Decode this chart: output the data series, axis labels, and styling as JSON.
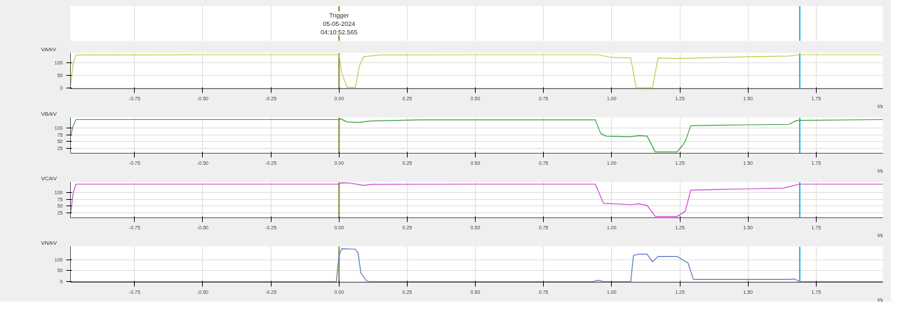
{
  "chart_data": [
    {
      "type": "line",
      "ylabel": "VA/kV",
      "xlabel": "t/s",
      "grid": true,
      "xlim": [
        -0.985,
        1.995
      ],
      "xticks": [
        {
          "value": -0.75,
          "label": "-0.75"
        },
        {
          "value": -0.5,
          "label": "-0.50"
        },
        {
          "value": -0.25,
          "label": "-0.25"
        },
        {
          "value": 0,
          "label": "0.00"
        },
        {
          "value": 0.25,
          "label": "0.25"
        },
        {
          "value": 0.5,
          "label": "0.50"
        },
        {
          "value": 0.75,
          "label": "0.75"
        },
        {
          "value": 1,
          "label": "1.00"
        },
        {
          "value": 1.25,
          "label": "1.25"
        },
        {
          "value": 1.5,
          "label": "1.50"
        },
        {
          "value": 1.75,
          "label": "1.75"
        }
      ],
      "ylim": [
        -2,
        140
      ],
      "yticks": [
        0,
        50,
        100
      ],
      "annotations": [
        {
          "text": "Trigger\n05-05-2024\n04:10:52.565",
          "x": 0
        }
      ],
      "ref_lines": [
        {
          "axis": "x",
          "value": 0,
          "color": "#8a8a3a"
        },
        {
          "axis": "x",
          "value": 1.69,
          "color": "#22bbdd"
        }
      ],
      "series": [
        {
          "color": "#c8c84a",
          "x": [
            -0.985,
            -0.975,
            -0.965,
            -0.5,
            0,
            0.01,
            0.03,
            0.06,
            0.075,
            0.09,
            0.15,
            0.5,
            0.95,
            1.0,
            1.07,
            1.09,
            1.15,
            1.17,
            1.25,
            1.5,
            1.65,
            1.69,
            1.995
          ],
          "values": [
            10,
            100,
            132,
            133,
            133,
            60,
            3,
            3,
            90,
            125,
            132,
            133,
            133,
            122,
            120,
            2,
            2,
            120,
            118,
            125,
            128,
            133,
            133
          ]
        }
      ]
    },
    {
      "type": "line",
      "ylabel": "VB/kV",
      "xlabel": "t/s",
      "grid": true,
      "xlim": [
        -0.985,
        1.995
      ],
      "xticks": [
        {
          "value": -0.75,
          "label": "-0.75"
        },
        {
          "value": -0.5,
          "label": "-0.50"
        },
        {
          "value": -0.25,
          "label": "-0.25"
        },
        {
          "value": 0,
          "label": "0.00"
        },
        {
          "value": 0.25,
          "label": "0.25"
        },
        {
          "value": 0.5,
          "label": "0.50"
        },
        {
          "value": 0.75,
          "label": "0.75"
        },
        {
          "value": 1,
          "label": "1.00"
        },
        {
          "value": 1.25,
          "label": "1.25"
        },
        {
          "value": 1.5,
          "label": "1.50"
        },
        {
          "value": 1.75,
          "label": "1.75"
        }
      ],
      "ylim": [
        5,
        141
      ],
      "yticks": [
        25,
        50,
        75,
        100
      ],
      "ref_lines": [
        {
          "axis": "x",
          "value": 0,
          "color": "#8a8a3a"
        },
        {
          "axis": "x",
          "value": 1.69,
          "color": "#22bbdd"
        }
      ],
      "series": [
        {
          "color": "#3aa03a",
          "x": [
            -0.985,
            -0.975,
            -0.965,
            -0.5,
            0,
            0.005,
            0.03,
            0.07,
            0.12,
            0.3,
            0.94,
            0.96,
            0.98,
            1.07,
            1.1,
            1.13,
            1.16,
            1.24,
            1.26,
            1.27,
            1.29,
            1.5,
            1.65,
            1.68,
            1.995
          ],
          "values": [
            70,
            110,
            133,
            133,
            133,
            136,
            124,
            122,
            128,
            132,
            132,
            80,
            70,
            68,
            72,
            70,
            10,
            10,
            35,
            50,
            110,
            113,
            115,
            130,
            133
          ]
        }
      ]
    },
    {
      "type": "line",
      "ylabel": "VC/kV",
      "xlabel": "t/s",
      "grid": true,
      "xlim": [
        -0.985,
        1.995
      ],
      "xticks": [
        {
          "value": -0.75,
          "label": "-0.75"
        },
        {
          "value": -0.5,
          "label": "-0.50"
        },
        {
          "value": -0.25,
          "label": "-0.25"
        },
        {
          "value": 0,
          "label": "0.00"
        },
        {
          "value": 0.25,
          "label": "0.25"
        },
        {
          "value": 0.5,
          "label": "0.50"
        },
        {
          "value": 0.75,
          "label": "0.75"
        },
        {
          "value": 1,
          "label": "1.00"
        },
        {
          "value": 1.25,
          "label": "1.25"
        },
        {
          "value": 1.5,
          "label": "1.50"
        },
        {
          "value": 1.75,
          "label": "1.75"
        }
      ],
      "ylim": [
        5,
        141
      ],
      "yticks": [
        25,
        50,
        75,
        100
      ],
      "ref_lines": [
        {
          "axis": "x",
          "value": 0,
          "color": "#8a8a3a"
        },
        {
          "axis": "x",
          "value": 1.69,
          "color": "#22bbdd"
        }
      ],
      "series": [
        {
          "color": "#cc44cc",
          "x": [
            -0.985,
            -0.975,
            -0.965,
            -0.5,
            0,
            0.01,
            0.04,
            0.09,
            0.12,
            0.5,
            0.94,
            0.97,
            1.07,
            1.1,
            1.13,
            1.16,
            1.24,
            1.27,
            1.29,
            1.5,
            1.63,
            1.69,
            1.995
          ],
          "values": [
            20,
            100,
            133,
            133,
            133,
            138,
            137,
            128,
            132,
            133,
            133,
            60,
            55,
            58,
            52,
            10,
            10,
            30,
            110,
            115,
            118,
            133,
            133
          ]
        }
      ]
    },
    {
      "type": "line",
      "ylabel": "VN/kV",
      "xlabel": "t/s",
      "grid": true,
      "xlim": [
        -0.985,
        1.995
      ],
      "xticks": [
        {
          "value": -0.75,
          "label": "-0.75"
        },
        {
          "value": -0.5,
          "label": "-0.50"
        },
        {
          "value": -0.25,
          "label": "-0.25"
        },
        {
          "value": 0,
          "label": "0.00"
        },
        {
          "value": 0.25,
          "label": "0.25"
        },
        {
          "value": 0.5,
          "label": "0.50"
        },
        {
          "value": 0.75,
          "label": "0.75"
        },
        {
          "value": 1,
          "label": "1.00"
        },
        {
          "value": 1.25,
          "label": "1.25"
        },
        {
          "value": 1.5,
          "label": "1.50"
        },
        {
          "value": 1.75,
          "label": "1.75"
        }
      ],
      "ylim": [
        -3,
        160
      ],
      "yticks": [
        0,
        50,
        100
      ],
      "ref_lines": [
        {
          "axis": "x",
          "value": 0,
          "color": "#8a8a3a"
        },
        {
          "axis": "x",
          "value": 1.69,
          "color": "#22bbdd"
        }
      ],
      "series": [
        {
          "color": "#5577bb",
          "x": [
            -0.985,
            -0.01,
            0,
            0.01,
            0.06,
            0.07,
            0.08,
            0.1,
            0.11,
            0.93,
            0.95,
            0.97,
            1.07,
            1.08,
            1.1,
            1.13,
            1.15,
            1.17,
            1.24,
            1.26,
            1.28,
            1.3,
            1.65,
            1.67,
            1.69,
            1.995
          ],
          "values": [
            0,
            0,
            120,
            150,
            148,
            130,
            40,
            5,
            0,
            0,
            6,
            0,
            0,
            120,
            125,
            125,
            90,
            115,
            115,
            100,
            85,
            10,
            10,
            12,
            0,
            0
          ]
        }
      ]
    }
  ]
}
